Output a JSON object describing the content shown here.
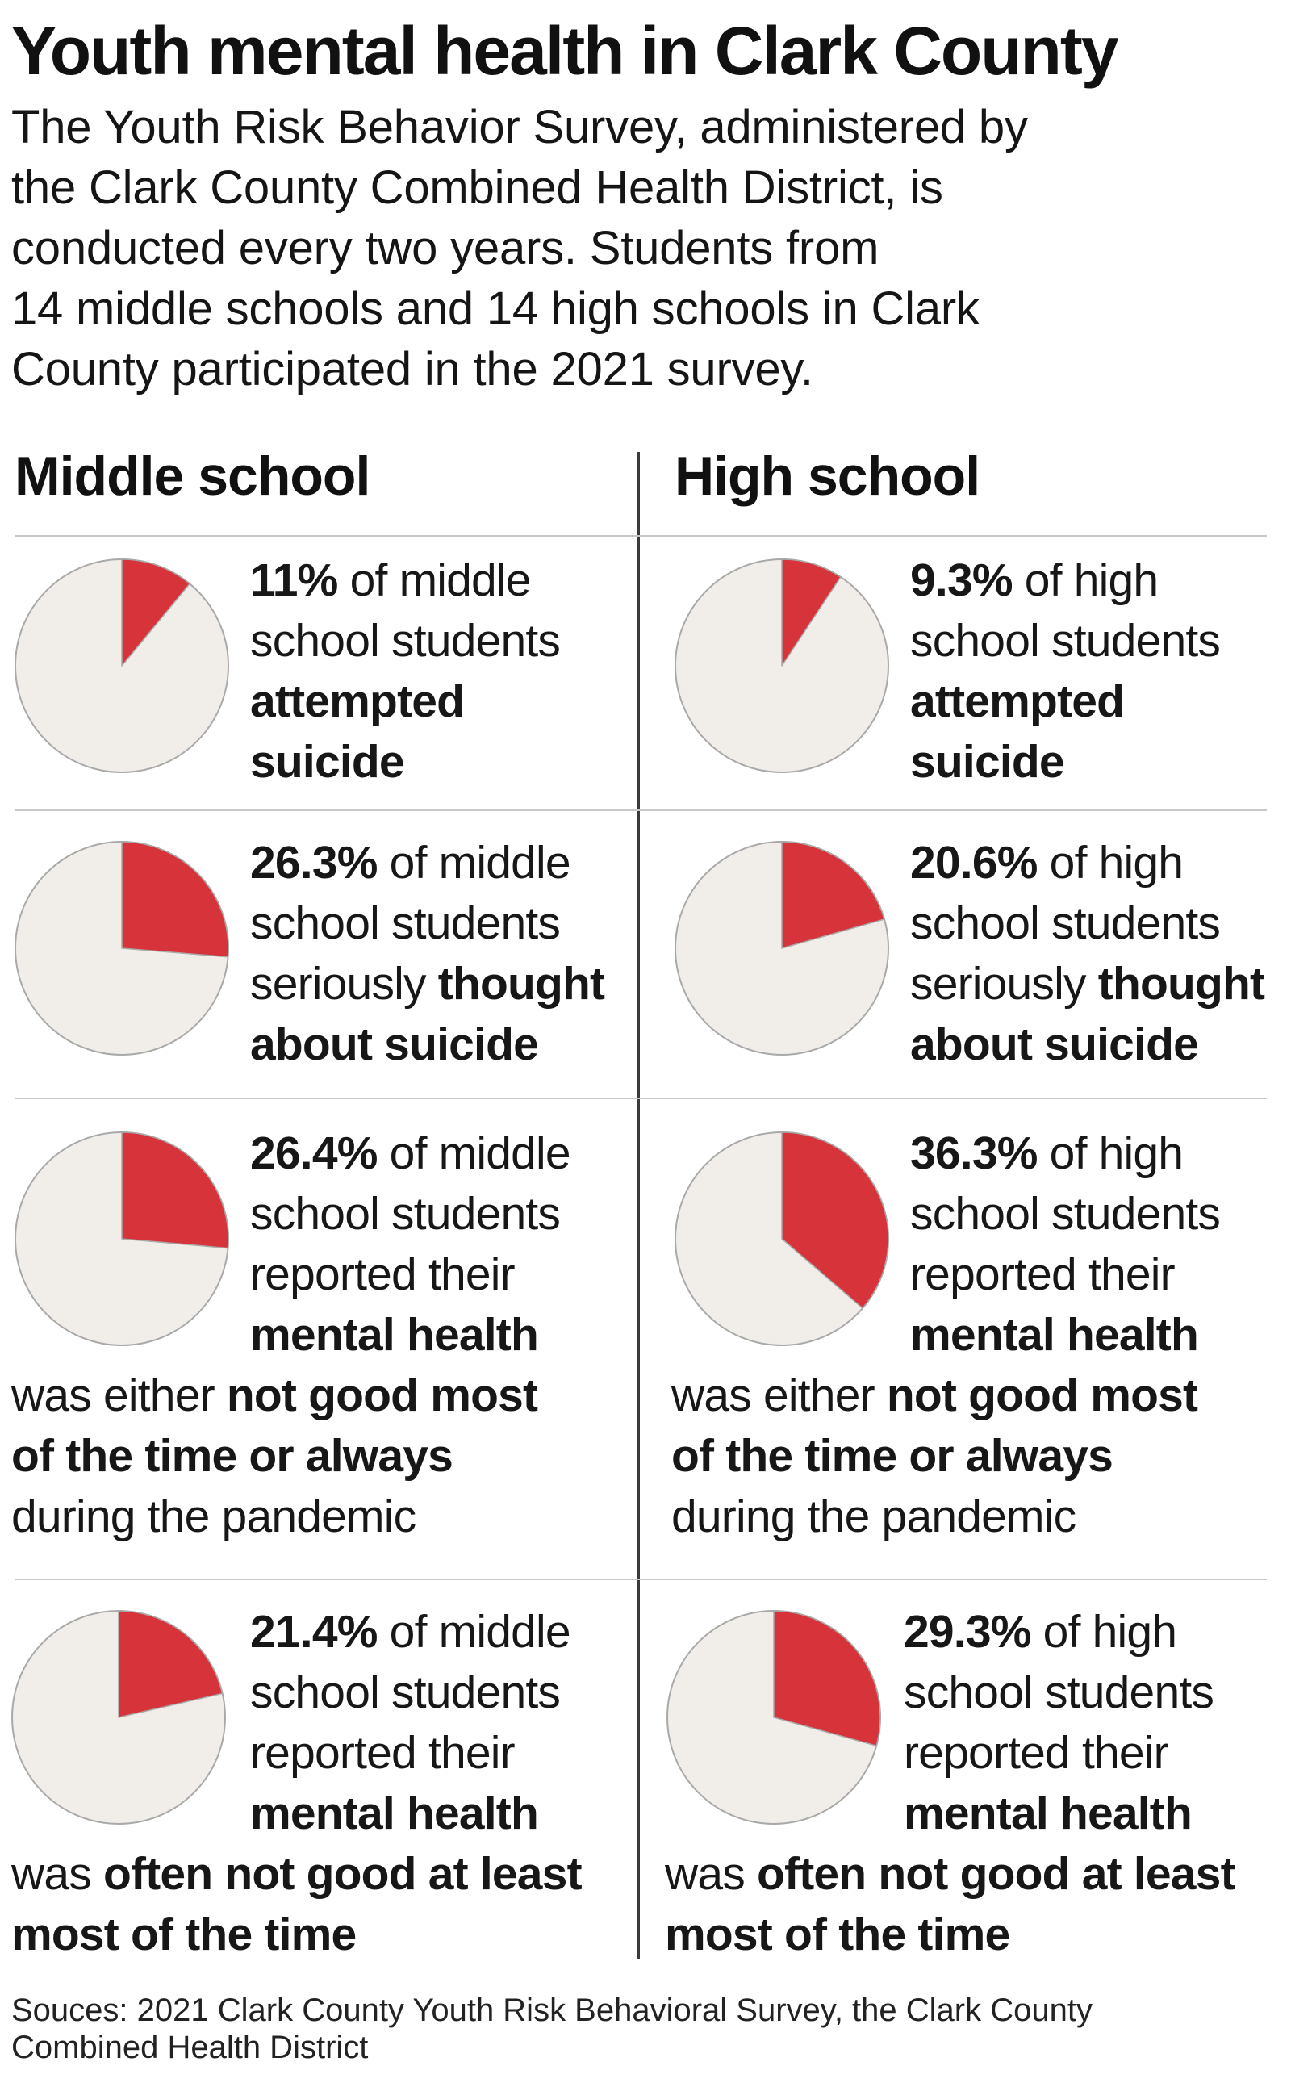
{
  "title": "Youth mental health in Clark County",
  "intro_lines": [
    "The Youth Risk Behavior Survey, administered by",
    "the Clark County Combined Health District, is",
    "conducted every two years. Students from",
    "14 middle schools and 14 high schools in Clark",
    "County participated in the 2021 survey."
  ],
  "columns": {
    "middle": "Middle school",
    "high": "High school"
  },
  "colors": {
    "highlight": "#d6333a",
    "pie_base": "#f1eeea",
    "pie_stroke": "#a9a9a9"
  },
  "chart_data": {
    "type": "pie",
    "title": "Youth mental health in Clark County",
    "unit": "percent of students",
    "series": [
      {
        "name": "Middle school",
        "values": [
          11,
          26.3,
          26.4,
          21.4
        ],
        "labels": [
          "attempted suicide",
          "seriously thought about suicide",
          "mental health not good most of the time or always during the pandemic",
          "mental health often not good at least most of the time"
        ],
        "stats": [
          {
            "value_label": "11%",
            "lines": [
              [
                "of middle"
              ],
              [
                "school students"
              ],
              [],
              [],
              [],
              []
            ],
            "l1_rest": "of middle",
            "l2": "school students",
            "l3_bold": "attempted",
            "l4_bold": "suicide"
          },
          {
            "value_label": "26.3%",
            "l1_rest": "of middle",
            "l2": "school students",
            "l3_pre": "seriously",
            "l3_bold": "thought",
            "l4_bold": "about suicide"
          },
          {
            "value_label": "26.4%",
            "l1_rest": "of middle",
            "l2": "school students",
            "l3": "reported their",
            "l4_bold": "mental health",
            "l5_pre": "was either",
            "l5_bold": "not good most",
            "l6_bold": "of the time or always",
            "l7": "during the pandemic"
          },
          {
            "value_label": "21.4%",
            "l1_rest": "of middle",
            "l2": "school students",
            "l3": "reported their",
            "l4_bold": "mental health",
            "l5_pre": "was",
            "l5_bold": "often not good at least",
            "l6_bold": "most of the time"
          }
        ]
      },
      {
        "name": "High school",
        "values": [
          9.3,
          20.6,
          36.3,
          29.3
        ],
        "labels": [
          "attempted suicide",
          "seriously thought about suicide",
          "mental health not good most of the time or always during the pandemic",
          "mental health often not good at least most of the time"
        ],
        "stats": [
          {
            "value_label": "9.3%",
            "l1_rest": "of high",
            "l2": "school students",
            "l3_bold": "attempted",
            "l4_bold": "suicide"
          },
          {
            "value_label": "20.6%",
            "l1_rest": "of high",
            "l2": "school students",
            "l3_pre": "seriously",
            "l3_bold": "thought",
            "l4_bold": "about suicide"
          },
          {
            "value_label": "36.3%",
            "l1_rest": "of high",
            "l2": "school students",
            "l3": "reported their",
            "l4_bold": "mental health",
            "l5_pre": "was either",
            "l5_bold": "not good most",
            "l6_bold": "of the time or always",
            "l7": "during the pandemic"
          },
          {
            "value_label": "29.3%",
            "l1_rest": "of high",
            "l2": "school students",
            "l3": "reported their",
            "l4_bold": "mental health",
            "l5_pre": "was",
            "l5_bold": "often not good at least",
            "l6_bold": "most of the time"
          }
        ]
      }
    ]
  },
  "source_lines": [
    "Souces: 2021 Clark County Youth Risk Behavioral Survey, the Clark County",
    "Combined Health District"
  ]
}
